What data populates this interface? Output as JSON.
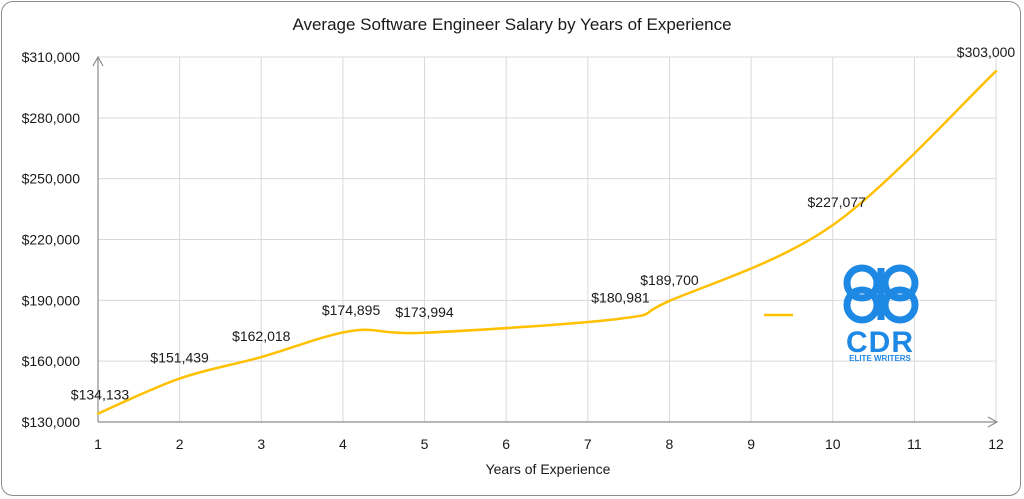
{
  "chart_data": {
    "type": "line",
    "title": "Average Software Engineer Salary by Years of Experience",
    "xlabel": "Years of Experience",
    "ylabel": "",
    "x": [
      1,
      2,
      3,
      4,
      5,
      6,
      7,
      8,
      9,
      10,
      11,
      12
    ],
    "x_tick_labels": [
      "1",
      "2",
      "3",
      "4",
      "5",
      "6",
      "7",
      "8",
      "9",
      "10",
      "11",
      "12"
    ],
    "y_tick_labels": [
      "$130,000",
      "$160,000",
      "$190,000",
      "$220,000",
      "$250,000",
      "$280,000",
      "$310,000"
    ],
    "ylim": [
      130000,
      310000
    ],
    "grid": true,
    "line_color": "#FFC000",
    "points": [
      {
        "x": 1,
        "y": 134133,
        "label": "$134,133"
      },
      {
        "x": 2,
        "y": 151439,
        "label": "$151,439"
      },
      {
        "x": 3,
        "y": 162018,
        "label": "$162,018"
      },
      {
        "x": 4.1,
        "y": 174895,
        "label": "$174,895"
      },
      {
        "x": 5,
        "y": 173994,
        "label": "$173,994"
      },
      {
        "x": 7.4,
        "y": 180981,
        "label": "$180,981"
      },
      {
        "x": 8,
        "y": 189700,
        "label": "$189,700"
      },
      {
        "x": 10,
        "y": 227077,
        "label": "$227,077"
      },
      {
        "x": 12,
        "y": 303000,
        "label": "$303,000"
      }
    ]
  },
  "watermark": {
    "text": "CDR",
    "subtext": "ELITE WRITERS",
    "color": "#1E88E5"
  }
}
